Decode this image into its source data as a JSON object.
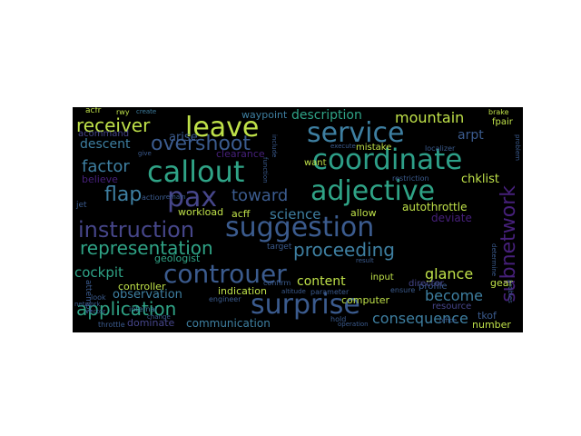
{
  "wordcloud": {
    "background": "#000000",
    "words": [
      {
        "text": "suggestion",
        "color": "#3b5b8e"
      },
      {
        "text": "controuer",
        "color": "#3b5b8e"
      },
      {
        "text": "callout",
        "color": "#2fa386"
      },
      {
        "text": "service",
        "color": "#3e7fa1"
      },
      {
        "text": "coordinate",
        "color": "#2d9f88"
      },
      {
        "text": "adjective",
        "color": "#2fa386"
      },
      {
        "text": "pax",
        "color": "#46468a"
      },
      {
        "text": "surprise",
        "color": "#3b5b8e"
      },
      {
        "text": "instruction",
        "color": "#46468a"
      },
      {
        "text": "leave",
        "color": "#bfe149"
      },
      {
        "text": "subnetwork",
        "color": "#46207a"
      },
      {
        "text": "representation",
        "color": "#2fa386"
      },
      {
        "text": "overshoot",
        "color": "#3b5b8e"
      },
      {
        "text": "receiver",
        "color": "#bfe149"
      },
      {
        "text": "application",
        "color": "#2fa386"
      },
      {
        "text": "proceeding",
        "color": "#3e7fa1"
      },
      {
        "text": "flap",
        "color": "#3e7fa1"
      },
      {
        "text": "toward",
        "color": "#3b5b8e"
      },
      {
        "text": "factor",
        "color": "#3e7fa1"
      },
      {
        "text": "cockpit",
        "color": "#2fa386"
      },
      {
        "text": "glance",
        "color": "#bfe149"
      },
      {
        "text": "become",
        "color": "#3e7fa1"
      },
      {
        "text": "consequence",
        "color": "#3e7fa1"
      },
      {
        "text": "mountain",
        "color": "#bfe149"
      },
      {
        "text": "description",
        "color": "#2fa386"
      },
      {
        "text": "arpt",
        "color": "#3b5b8e"
      },
      {
        "text": "descent",
        "color": "#3e7fa1"
      },
      {
        "text": "arise",
        "color": "#3b5b8e"
      },
      {
        "text": "science",
        "color": "#3e7fa1"
      },
      {
        "text": "content",
        "color": "#bfe149"
      },
      {
        "text": "observation",
        "color": "#3e7fa1"
      },
      {
        "text": "communication",
        "color": "#3e7fa1"
      },
      {
        "text": "chklist",
        "color": "#bfe149"
      },
      {
        "text": "waypoint",
        "color": "#3e7fa1"
      },
      {
        "text": "autothrottle",
        "color": "#bfe149"
      },
      {
        "text": "deviate",
        "color": "#46207a"
      },
      {
        "text": "acommand",
        "color": "#46468a"
      },
      {
        "text": "believe",
        "color": "#46207a"
      },
      {
        "text": "clearance",
        "color": "#46207a"
      },
      {
        "text": "controller",
        "color": "#bfe149"
      },
      {
        "text": "workload",
        "color": "#bfe149"
      },
      {
        "text": "acff",
        "color": "#bfe149"
      },
      {
        "text": "allow",
        "color": "#bfe149"
      },
      {
        "text": "geologist",
        "color": "#2fa386"
      },
      {
        "text": "indication",
        "color": "#bfe149"
      },
      {
        "text": "dominate",
        "color": "#46468a"
      },
      {
        "text": "computer",
        "color": "#bfe149"
      },
      {
        "text": "input",
        "color": "#bfe149"
      },
      {
        "text": "profile",
        "color": "#3b5b8e"
      },
      {
        "text": "director",
        "color": "#46468a"
      },
      {
        "text": "resource",
        "color": "#46468a"
      },
      {
        "text": "gear",
        "color": "#bfe149"
      },
      {
        "text": "tkof",
        "color": "#3b5b8e"
      },
      {
        "text": "number",
        "color": "#bfe149"
      },
      {
        "text": "mistake",
        "color": "#bfe149"
      },
      {
        "text": "want",
        "color": "#bfe149"
      },
      {
        "text": "fpair",
        "color": "#bfe149"
      },
      {
        "text": "acfr",
        "color": "#bfe149"
      },
      {
        "text": "rwy",
        "color": "#bfe149"
      },
      {
        "text": "create",
        "color": "#3e7fa1"
      },
      {
        "text": "target",
        "color": "#3b5b8e"
      },
      {
        "text": "attempt",
        "color": "#3b5b8e"
      },
      {
        "text": "look",
        "color": "#3b5b8e"
      },
      {
        "text": "engineer",
        "color": "#3b5b8e"
      },
      {
        "text": "internal",
        "color": "#3e7fa1"
      },
      {
        "text": "parameter",
        "color": "#3b5b8e"
      },
      {
        "text": "hold",
        "color": "#3b5b8e"
      },
      {
        "text": "confirm",
        "color": "#3b5b8e"
      },
      {
        "text": "ensure",
        "color": "#3b5b8e"
      },
      {
        "text": "restriction",
        "color": "#3b5b8e"
      },
      {
        "text": "localizer",
        "color": "#3b5b8e"
      },
      {
        "text": "brake",
        "color": "#bfe149"
      },
      {
        "text": "determine",
        "color": "#3b5b8e"
      },
      {
        "text": "problem",
        "color": "#3b5b8e"
      },
      {
        "text": "action",
        "color": "#3b5b8e"
      },
      {
        "text": "jet",
        "color": "#3b5b8e"
      },
      {
        "text": "throttle",
        "color": "#3b5b8e"
      },
      {
        "text": "vector",
        "color": "#3b5b8e"
      },
      {
        "text": "network",
        "color": "#3b5b8e"
      },
      {
        "text": "change",
        "color": "#3b5b8e"
      },
      {
        "text": "remain",
        "color": "#3b5b8e"
      },
      {
        "text": "give",
        "color": "#3b5b8e"
      },
      {
        "text": "execute",
        "color": "#3b5b8e"
      },
      {
        "text": "include",
        "color": "#3b5b8e"
      },
      {
        "text": "function",
        "color": "#3b5b8e"
      },
      {
        "text": "operation",
        "color": "#3b5b8e"
      },
      {
        "text": "office",
        "color": "#3b5b8e"
      },
      {
        "text": "altitude",
        "color": "#3b5b8e"
      },
      {
        "text": "result",
        "color": "#3b5b8e"
      },
      {
        "text": "probles",
        "color": "#3b5b8e"
      }
    ]
  }
}
